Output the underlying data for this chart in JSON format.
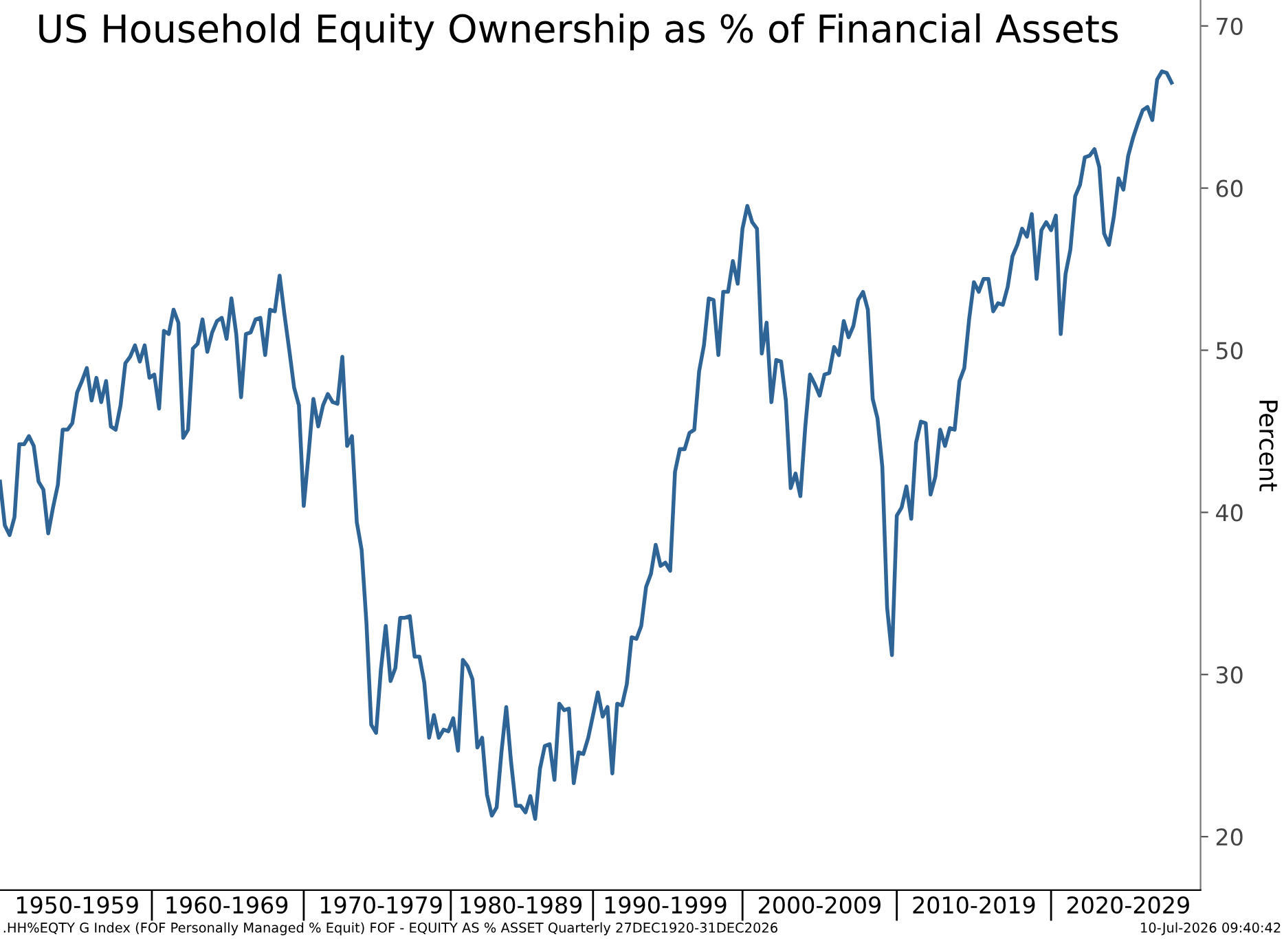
{
  "chart_data": {
    "type": "line",
    "title": "US Household Equity Ownership as % of Financial Assets",
    "ylabel": "Percent",
    "annotations": [
      ".HH%EQTY G Index (FOF Personally Managed % Equit) FOF - EQUITY AS % ASSET Quarterly 27DEC1920-31DEC2026",
      "10-Jul-2026 09:40:42"
    ],
    "categories": [
      null,
      null,
      null,
      null,
      null,
      null,
      null,
      null,
      null,
      null,
      null,
      null,
      null,
      null,
      null,
      null,
      "1950-1959",
      null,
      null,
      null,
      null,
      null,
      null,
      null,
      null,
      null,
      null,
      null,
      null,
      null,
      null,
      null,
      null,
      null,
      null,
      null,
      null,
      null,
      null,
      null,
      null,
      null,
      null,
      null,
      null,
      null,
      null,
      "1960-1969",
      null,
      null,
      null,
      null,
      null,
      null,
      null,
      null,
      null,
      null,
      null,
      null,
      null,
      null,
      null,
      null,
      null,
      null,
      null,
      null,
      null,
      null,
      null,
      null,
      null,
      null,
      null,
      null,
      null,
      null,
      null,
      "1970-1979",
      null,
      null,
      null,
      null,
      null,
      null,
      null,
      null,
      null,
      null,
      null,
      null,
      null,
      null,
      null,
      null,
      null,
      null,
      null,
      null,
      null,
      null,
      null,
      null,
      null,
      null,
      null,
      null,
      "1980-1989",
      null,
      null,
      null,
      null,
      null,
      null,
      null,
      null,
      null,
      null,
      null,
      null,
      null,
      null,
      null,
      null,
      null,
      null,
      null,
      null,
      null,
      null,
      null,
      null,
      null,
      null,
      null,
      null,
      null,
      "1990-1999",
      null,
      null,
      null,
      null,
      null,
      null,
      null,
      null,
      null,
      null,
      null,
      null,
      null,
      null,
      null,
      null,
      null,
      null,
      null,
      null,
      null,
      null,
      null,
      null,
      null,
      null,
      null,
      null,
      null,
      null,
      null,
      "2000-2009",
      null,
      null,
      null,
      null,
      null,
      null,
      null,
      null,
      null,
      null,
      null,
      null,
      null,
      null,
      null,
      null,
      null,
      null,
      null,
      null,
      null,
      null,
      null,
      null,
      null,
      null,
      null,
      null,
      null,
      null,
      null,
      "2010-2019",
      null,
      null,
      null,
      null,
      null,
      null,
      null,
      null,
      null,
      null,
      null,
      null,
      null,
      null,
      null,
      null,
      null,
      null,
      null,
      null,
      null,
      null,
      null,
      null,
      null,
      null,
      null,
      null,
      null,
      null,
      null,
      "2020-2029",
      null,
      null,
      null,
      null,
      null,
      null,
      null,
      null,
      null,
      null,
      null,
      null,
      null,
      null,
      null
    ],
    "series": [
      {
        "color": "#2f6497",
        "values": [
          41.9,
          39.2,
          38.6,
          39.7,
          44.2,
          44.2,
          44.7,
          44.1,
          41.9,
          41.4,
          38.7,
          40.3,
          41.7,
          45.1,
          45.1,
          45.5,
          47.4,
          48.1,
          48.9,
          46.9,
          48.3,
          46.8,
          48.1,
          45.3,
          45.1,
          46.6,
          49.2,
          49.6,
          50.3,
          49.3,
          50.3,
          48.3,
          48.5,
          46.4,
          51.2,
          51.0,
          52.5,
          51.7,
          44.6,
          45.1,
          50.1,
          50.4,
          51.9,
          49.9,
          51.1,
          51.8,
          52.0,
          50.7,
          53.2,
          51.0,
          47.1,
          51.0,
          51.1,
          51.9,
          52.0,
          49.7,
          52.5,
          52.4,
          54.6,
          52.2,
          50.0,
          47.7,
          46.6,
          40.4,
          43.6,
          47.0,
          45.3,
          46.6,
          47.3,
          46.8,
          46.7,
          49.6,
          44.1,
          44.7,
          39.4,
          37.7,
          33.2,
          26.9,
          26.4,
          30.3,
          33.0,
          29.6,
          30.4,
          33.5,
          33.5,
          33.6,
          31.1,
          31.1,
          29.5,
          26.1,
          27.5,
          26.1,
          26.6,
          26.5,
          27.3,
          25.3,
          30.9,
          30.5,
          29.7,
          25.5,
          26.1,
          22.6,
          21.3,
          21.8,
          25.2,
          28.0,
          24.6,
          21.9,
          21.9,
          21.5,
          22.5,
          21.1,
          24.2,
          25.6,
          25.7,
          23.5,
          28.2,
          27.8,
          27.9,
          23.3,
          25.2,
          25.1,
          26.1,
          27.5,
          28.9,
          27.4,
          28.0,
          23.9,
          28.2,
          28.1,
          29.4,
          32.3,
          32.2,
          33.0,
          35.4,
          36.2,
          38.0,
          36.7,
          36.9,
          36.4,
          42.5,
          43.9,
          43.9,
          44.9,
          45.1,
          48.7,
          50.3,
          53.2,
          53.1,
          49.7,
          53.6,
          53.6,
          55.5,
          54.1,
          57.5,
          58.9,
          57.9,
          57.5,
          49.8,
          51.7,
          46.8,
          49.4,
          49.3,
          46.9,
          41.5,
          42.4,
          41.0,
          45.2,
          48.5,
          47.9,
          47.2,
          48.5,
          48.6,
          50.2,
          49.7,
          51.8,
          50.8,
          51.5,
          53.1,
          53.6,
          52.5,
          47.0,
          45.8,
          42.8,
          34.1,
          31.2,
          39.8,
          40.3,
          41.6,
          39.6,
          44.3,
          45.6,
          45.5,
          41.1,
          42.2,
          45.1,
          44.1,
          45.2,
          45.1,
          48.1,
          48.9,
          51.9,
          54.2,
          53.6,
          54.4,
          54.4,
          52.4,
          52.9,
          52.8,
          53.9,
          55.8,
          56.5,
          57.5,
          57.0,
          58.4,
          54.4,
          57.4,
          57.9,
          57.4,
          58.3,
          51.0,
          54.7,
          56.2,
          59.5,
          60.2,
          61.9,
          62.0,
          62.4,
          61.3,
          57.2,
          56.5,
          58.2,
          60.6,
          59.9,
          62.0,
          63.1,
          64.0,
          64.8,
          65.0,
          64.2,
          66.7,
          67.2,
          67.1,
          66.5,
          null,
          null,
          null,
          null,
          null,
          null
        ]
      }
    ],
    "ylim": [
      16.7,
      71.6
    ],
    "yticks": [
      20,
      30,
      40,
      50,
      60,
      70
    ],
    "grid": false,
    "legend": false,
    "line_style": "solid",
    "marker": "none"
  }
}
